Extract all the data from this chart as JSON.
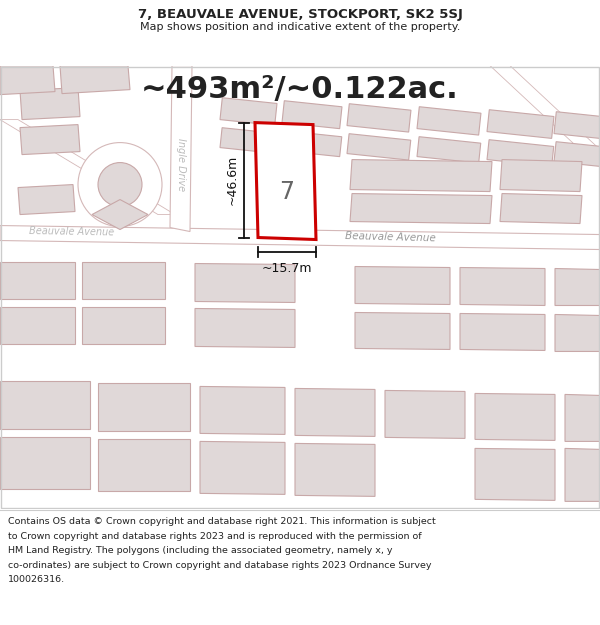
{
  "title_line1": "7, BEAUVALE AVENUE, STOCKPORT, SK2 5SJ",
  "title_line2": "Map shows position and indicative extent of the property.",
  "area_text": "~493m²/~0.122ac.",
  "dim_vertical": "~46.6m",
  "dim_horizontal": "~15.7m",
  "property_number": "7",
  "road_label_main": "Beauvale Avenue",
  "road_label_left": "Beauvale Avenue",
  "side_road_label": "Ingle Drive",
  "footer_lines": [
    "Contains OS data © Crown copyright and database right 2021. This information is subject",
    "to Crown copyright and database rights 2023 and is reproduced with the permission of",
    "HM Land Registry. The polygons (including the associated geometry, namely x, y",
    "co-ordinates) are subject to Crown copyright and database rights 2023 Ordnance Survey",
    "100026316."
  ],
  "bg_color": "#ffffff",
  "map_bg": "#f7f2f2",
  "highlight_color": "#cc0000",
  "building_fill": "#e0d8d8",
  "building_edge": "#c8a8a8",
  "road_fill": "#ffffff",
  "road_edge": "#d4b8b8",
  "text_color": "#222222",
  "dim_color": "#111111",
  "gray_text": "#999999",
  "footer_fontsize": 6.8,
  "title_fontsize": 9.5,
  "subtitle_fontsize": 8.0,
  "area_fontsize": 22
}
